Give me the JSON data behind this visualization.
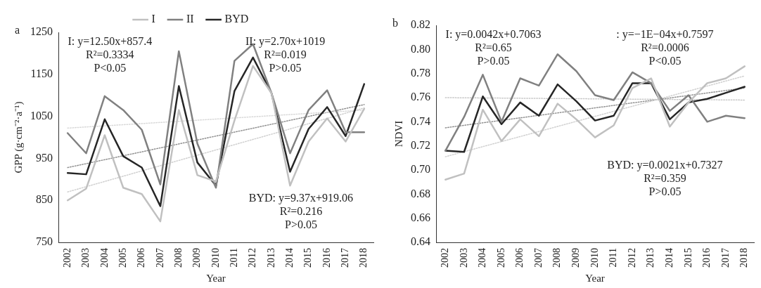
{
  "chart_data": [
    {
      "type": "line",
      "title": "a",
      "xlabel": "Year",
      "ylabel": "GPP (g·cm⁻²·a⁻¹)",
      "categories": [
        "2002",
        "2003",
        "2004",
        "2005",
        "2006",
        "2007",
        "2008",
        "2009",
        "2010",
        "2011",
        "2012",
        "2013",
        "2014",
        "2015",
        "2016",
        "2017",
        "2018"
      ],
      "series": [
        {
          "name": "I",
          "color": "#c0c0c0",
          "values": [
            850,
            878,
            1005,
            880,
            865,
            800,
            1065,
            910,
            895,
            1040,
            1170,
            1105,
            885,
            990,
            1045,
            990,
            1068
          ]
        },
        {
          "name": "II",
          "color": "#808080",
          "values": [
            1010,
            962,
            1098,
            1065,
            1018,
            888,
            1205,
            985,
            880,
            1182,
            1222,
            1105,
            962,
            1065,
            1112,
            1012,
            1012
          ]
        },
        {
          "name": "BYD",
          "color": "#262626",
          "values": [
            915,
            912,
            1043,
            955,
            928,
            836,
            1122,
            940,
            885,
            1110,
            1190,
            1105,
            918,
            1020,
            1072,
            1003,
            1127
          ]
        },
        {
          "color": "#d0d0d0",
          "values": [
            870,
            null,
            null,
            null,
            null,
            null,
            null,
            null,
            null,
            null,
            null,
            null,
            null,
            null,
            null,
            null,
            1070
          ],
          "line_style": "dotted"
        },
        {
          "color": "#d8d8d8",
          "values": [
            1022,
            null,
            null,
            null,
            null,
            null,
            null,
            null,
            null,
            null,
            null,
            null,
            null,
            null,
            null,
            null,
            1065
          ],
          "line_style": "dotted"
        },
        {
          "color": "#909090",
          "values": [
            928,
            null,
            null,
            null,
            null,
            null,
            null,
            null,
            null,
            null,
            null,
            null,
            null,
            null,
            null,
            null,
            1078
          ],
          "line_style": "dotted"
        }
      ],
      "ylim": [
        750,
        1250
      ],
      "yticks": [
        750,
        850,
        950,
        1050,
        1150,
        1250
      ],
      "grid": false,
      "legend": "top",
      "marker": "none",
      "annotations": [
        "I: y=12.50x+857.4\nR²=0.3334\nP<0.05",
        "II: y=2.70x+1019\nR²=0.019\nP>0.05",
        "BYD: y=9.37x+919.06\nR²=0.216\nP>0.05"
      ]
    },
    {
      "type": "line",
      "title": "b",
      "xlabel": "Year",
      "ylabel": "NDVI",
      "categories": [
        "2002",
        "2003",
        "2004",
        "2005",
        "2006",
        "2007",
        "2008",
        "2009",
        "2010",
        "2011",
        "2012",
        "2013",
        "2014",
        "2015",
        "2016",
        "2017",
        "2018"
      ],
      "series": [
        {
          "color": "#c0c0c0",
          "values": [
            0.692,
            0.697,
            0.75,
            0.724,
            0.742,
            0.728,
            0.755,
            0.742,
            0.727,
            0.737,
            0.768,
            0.776,
            0.736,
            0.756,
            0.772,
            0.776,
            0.786
          ]
        },
        {
          "color": "#808080",
          "values": [
            0.716,
            0.744,
            0.779,
            0.74,
            0.776,
            0.77,
            0.796,
            0.782,
            0.762,
            0.758,
            0.781,
            0.772,
            0.749,
            0.762,
            0.74,
            0.745,
            0.743
          ]
        },
        {
          "color": "#262626",
          "values": [
            0.716,
            0.715,
            0.761,
            0.738,
            0.756,
            0.745,
            0.771,
            0.757,
            0.741,
            0.745,
            0.772,
            0.772,
            0.742,
            0.756,
            0.759,
            0.764,
            0.769
          ]
        },
        {
          "color": "#d0d0d0",
          "values": [
            0.711,
            null,
            null,
            null,
            null,
            null,
            null,
            null,
            null,
            null,
            null,
            null,
            null,
            null,
            null,
            null,
            0.778
          ],
          "line_style": "dotted"
        },
        {
          "color": "#c8c8c8",
          "values": [
            0.76,
            null,
            null,
            null,
            null,
            null,
            null,
            null,
            null,
            null,
            null,
            null,
            null,
            null,
            null,
            null,
            0.758
          ],
          "line_style": "dotted"
        },
        {
          "color": "#909090",
          "values": [
            0.735,
            null,
            null,
            null,
            null,
            null,
            null,
            null,
            null,
            null,
            null,
            null,
            null,
            null,
            null,
            null,
            0.768
          ],
          "line_style": "dotted"
        }
      ],
      "ylim": [
        0.64,
        0.82
      ],
      "yticks": [
        {
          "value": 0.64,
          "label": "0.64"
        },
        {
          "value": 0.66,
          "label": "0.66"
        },
        {
          "value": 0.68,
          "label": "0.68"
        },
        {
          "value": 0.7,
          "label": "0.70"
        },
        {
          "value": 0.72,
          "label": "0.72"
        },
        {
          "value": 0.74,
          "label": "0.74"
        },
        {
          "value": 0.76,
          "label": "0.76"
        },
        {
          "value": 0.78,
          "label": "0.78"
        },
        {
          "value": 0.8,
          "label": "0.80"
        },
        {
          "value": 0.82,
          "label": "0.82"
        }
      ],
      "grid": false,
      "legend": false,
      "marker": "none",
      "annotations": [
        "I: y=0.0042x+0.7063\nR²=0.65\nP>0.05",
        ": y=−1E−04x+0.7597\nR²=0.0006\nP<0.05",
        "BYD: y=0.0021x+0.7327\nR²=0.359\nP>0.05"
      ]
    }
  ]
}
